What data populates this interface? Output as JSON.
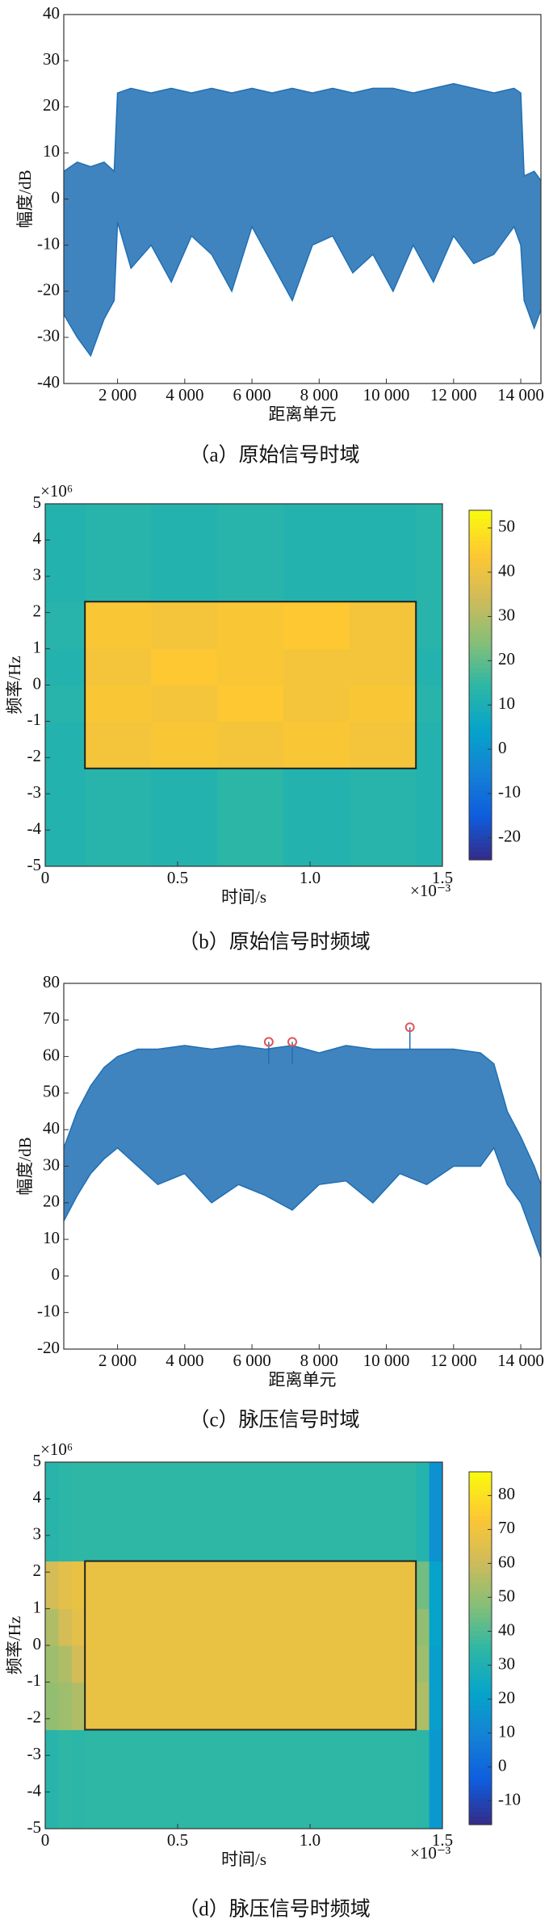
{
  "chart_data": [
    {
      "type": "line",
      "caption": "（a）原始信号时域",
      "xlabel": "距离单元",
      "ylabel": "幅度/dB",
      "color": "#1f6fb4",
      "xlim": [
        400,
        14600
      ],
      "ylim": [
        -40,
        40
      ],
      "xticks": [
        {
          "value": 2000,
          "label": "2 000"
        },
        {
          "value": 4000,
          "label": "4 000"
        },
        {
          "value": 6000,
          "label": "6 000"
        },
        {
          "value": 8000,
          "label": "8 000"
        },
        {
          "value": 10000,
          "label": "10 000"
        },
        {
          "value": 12000,
          "label": "12 000"
        },
        {
          "value": 14000,
          "label": "14 000"
        }
      ],
      "yticks": [
        -40,
        -30,
        -20,
        -10,
        0,
        10,
        20,
        30,
        40
      ],
      "x": [
        400,
        800,
        1200,
        1600,
        1900,
        2000,
        2400,
        3000,
        3600,
        4200,
        4800,
        5400,
        6000,
        6600,
        7200,
        7800,
        8400,
        9000,
        9600,
        10200,
        10800,
        11400,
        12000,
        12600,
        13200,
        13800,
        14000,
        14100,
        14400,
        14600
      ],
      "series": [
        {
          "values": [
            6,
            8,
            7,
            8,
            6,
            23,
            24,
            23,
            24,
            23,
            24,
            23,
            24,
            23,
            24,
            23,
            24,
            23,
            24,
            24,
            23,
            24,
            25,
            24,
            23,
            24,
            23,
            5,
            6,
            4
          ]
        },
        {
          "values": [
            -25,
            -30,
            -34,
            -26,
            -22,
            -5,
            -15,
            -10,
            -18,
            -8,
            -12,
            -20,
            -6,
            -14,
            -22,
            -10,
            -8,
            -16,
            -12,
            -20,
            -10,
            -18,
            -8,
            -14,
            -12,
            -6,
            -10,
            -22,
            -28,
            -24
          ]
        }
      ]
    },
    {
      "type": "heatmap",
      "caption": "（b）原始信号时频域",
      "xlabel": "时间/s",
      "ylabel": "频率/Hz",
      "x_multiplier": "×10⁻³",
      "y_multiplier": "×10⁶",
      "xlim": [
        0,
        1.5
      ],
      "ylim": [
        -5,
        5
      ],
      "xticks": [
        0,
        0.5,
        {
          "value": 1,
          "label": "1.0"
        },
        1.5
      ],
      "yticks": [
        -5,
        -4,
        -3,
        -2,
        -1,
        0,
        1,
        2,
        3,
        4,
        5
      ],
      "colormap": [
        "#352a87",
        "#0f5cdd",
        "#1481d6",
        "#06a4ca",
        "#2eb7a4",
        "#87bf77",
        "#d1bb59",
        "#fec832",
        "#f9fb0e"
      ],
      "clim": [
        -25,
        54
      ],
      "cticks": [
        -20,
        -10,
        0,
        10,
        20,
        30,
        40,
        50
      ],
      "x_edges": [
        0,
        0.15,
        0.4,
        0.65,
        0.9,
        1.15,
        1.4,
        1.5
      ],
      "y_edges": [
        -5,
        -2.3,
        -1,
        0,
        1,
        2.3,
        5
      ],
      "z": [
        [
          12,
          13,
          12,
          14,
          12,
          13,
          12
        ],
        [
          12,
          42,
          43,
          42,
          43,
          42,
          12
        ],
        [
          13,
          43,
          42,
          44,
          42,
          43,
          13
        ],
        [
          12,
          42,
          44,
          43,
          42,
          42,
          12
        ],
        [
          13,
          43,
          42,
          43,
          44,
          42,
          13
        ],
        [
          12,
          13,
          12,
          13,
          12,
          12,
          13
        ]
      ],
      "box": {
        "x": [
          0.15,
          1.4
        ],
        "y": [
          -2.3,
          2.3
        ]
      }
    },
    {
      "type": "line",
      "caption": "（c）脉压信号时域",
      "xlabel": "距离单元",
      "ylabel": "幅度/dB",
      "color": "#1f6fb4",
      "xlim": [
        400,
        14600
      ],
      "ylim": [
        -20,
        80
      ],
      "xticks": [
        {
          "value": 2000,
          "label": "2 000"
        },
        {
          "value": 4000,
          "label": "4 000"
        },
        {
          "value": 6000,
          "label": "6 000"
        },
        {
          "value": 8000,
          "label": "8 000"
        },
        {
          "value": 10000,
          "label": "10 000"
        },
        {
          "value": 12000,
          "label": "12 000"
        },
        {
          "value": 14000,
          "label": "14 000"
        }
      ],
      "yticks": [
        -20,
        -10,
        0,
        10,
        20,
        30,
        40,
        50,
        60,
        70,
        80
      ],
      "x": [
        400,
        800,
        1200,
        1600,
        2000,
        2600,
        3200,
        4000,
        4800,
        5600,
        6400,
        7200,
        8000,
        8800,
        9600,
        10400,
        11200,
        12000,
        12800,
        13200,
        13600,
        14000,
        14400,
        14600
      ],
      "series": [
        {
          "values": [
            35,
            45,
            52,
            57,
            60,
            62,
            62,
            63,
            62,
            63,
            62,
            63,
            61,
            63,
            62,
            62,
            62,
            62,
            61,
            58,
            45,
            38,
            30,
            25
          ]
        },
        {
          "values": [
            15,
            22,
            28,
            32,
            35,
            30,
            25,
            28,
            20,
            25,
            22,
            18,
            25,
            26,
            20,
            28,
            25,
            30,
            30,
            35,
            25,
            20,
            10,
            5
          ]
        }
      ],
      "markers": {
        "color": "#e05555",
        "x": [
          6500,
          7200,
          10700
        ],
        "values": [
          64,
          64,
          68
        ]
      }
    },
    {
      "type": "heatmap",
      "caption": "（d）脉压信号时频域",
      "xlabel": "时间/s",
      "ylabel": "频率/Hz",
      "x_multiplier": "×10⁻³",
      "y_multiplier": "×10⁶",
      "xlim": [
        0,
        1.5
      ],
      "ylim": [
        -5,
        5
      ],
      "xticks": [
        0,
        0.5,
        {
          "value": 1,
          "label": "1.0"
        },
        1.5
      ],
      "yticks": [
        -5,
        -4,
        -3,
        -2,
        -1,
        0,
        1,
        2,
        3,
        4,
        5
      ],
      "colormap": [
        "#352a87",
        "#0f5cdd",
        "#1481d6",
        "#06a4ca",
        "#2eb7a4",
        "#87bf77",
        "#d1bb59",
        "#fec832",
        "#f9fb0e"
      ],
      "clim": [
        -17,
        87
      ],
      "cticks": [
        -10,
        0,
        10,
        20,
        30,
        40,
        50,
        60,
        70,
        80
      ],
      "x_edges": [
        0,
        0.05,
        0.1,
        0.15,
        1.4,
        1.45,
        1.5
      ],
      "y_edges": [
        -5,
        -2.3,
        -1,
        0,
        1,
        2.3,
        5
      ],
      "z": [
        [
          33,
          35,
          34,
          35,
          34,
          18
        ],
        [
          50,
          52,
          55,
          68,
          55,
          20
        ],
        [
          52,
          55,
          62,
          68,
          52,
          20
        ],
        [
          55,
          62,
          66,
          68,
          50,
          22
        ],
        [
          62,
          66,
          68,
          68,
          45,
          22
        ],
        [
          33,
          34,
          35,
          35,
          32,
          15
        ]
      ],
      "box": {
        "x": [
          0.15,
          1.4
        ],
        "y": [
          -2.3,
          2.3
        ]
      }
    }
  ]
}
